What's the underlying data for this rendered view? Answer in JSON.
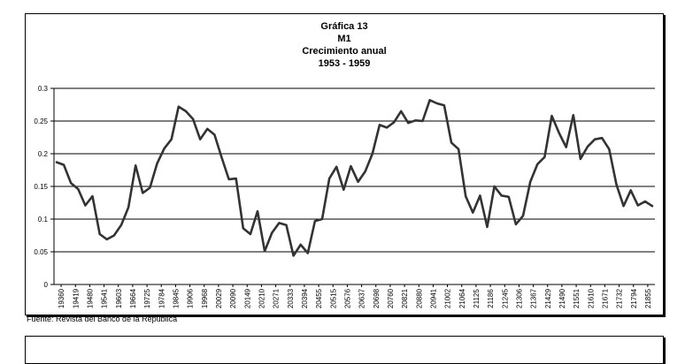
{
  "chart_data": {
    "type": "line",
    "title": [
      "Gráfica 13",
      "M1",
      "Crecimiento anual",
      "1953 - 1959"
    ],
    "source": "Fuente: Revista del Banco de la República",
    "ylim": [
      0,
      0.3
    ],
    "yticks": [
      "0",
      "0.05",
      "0.1",
      "0.15",
      "0.2",
      "0.25",
      "0.3"
    ],
    "x_tick_labels": [
      "19360",
      "19419",
      "19480",
      "19541",
      "19603",
      "19664",
      "19725",
      "19784",
      "19845",
      "19906",
      "19968",
      "20029",
      "20090",
      "20149",
      "20210",
      "20271",
      "20333",
      "20394",
      "20455",
      "20515",
      "20576",
      "20637",
      "20698",
      "20760",
      "20821",
      "20880",
      "20941",
      "21002",
      "21064",
      "21125",
      "21186",
      "21245",
      "21306",
      "21367",
      "21429",
      "21490",
      "21551",
      "21610",
      "21671",
      "21732",
      "21794",
      "21855"
    ],
    "grid": "horizontal",
    "series": [
      {
        "color": "#333333",
        "values": [
          0.187,
          0.183,
          0.155,
          0.146,
          0.121,
          0.135,
          0.077,
          0.069,
          0.075,
          0.091,
          0.118,
          0.182,
          0.14,
          0.148,
          0.185,
          0.208,
          0.222,
          0.272,
          0.265,
          0.253,
          0.222,
          0.238,
          0.229,
          0.194,
          0.161,
          0.162,
          0.086,
          0.077,
          0.112,
          0.051,
          0.079,
          0.094,
          0.091,
          0.044,
          0.061,
          0.048,
          0.097,
          0.1,
          0.162,
          0.18,
          0.145,
          0.181,
          0.157,
          0.173,
          0.2,
          0.244,
          0.24,
          0.248,
          0.265,
          0.247,
          0.251,
          0.25,
          0.282,
          0.277,
          0.274,
          0.217,
          0.207,
          0.135,
          0.11,
          0.136,
          0.088,
          0.15,
          0.136,
          0.134,
          0.092,
          0.105,
          0.157,
          0.184,
          0.195,
          0.258,
          0.232,
          0.21,
          0.259,
          0.192,
          0.211,
          0.222,
          0.224,
          0.207,
          0.153,
          0.12,
          0.144,
          0.121,
          0.127,
          0.12
        ]
      }
    ]
  }
}
